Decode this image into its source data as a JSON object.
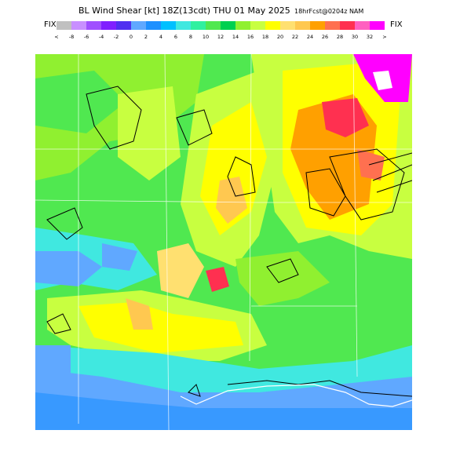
{
  "header": {
    "title": "BL Wind Shear [kt] 18Z(13cdt) THU 01 May 2025",
    "subtitle": "18hrFcst@0204z NAM",
    "fix_left": "FIX",
    "fix_right": "FIX"
  },
  "colorbar": {
    "colors": [
      "#c0c0c0",
      "#c890ff",
      "#a050ff",
      "#8020ff",
      "#5030f0",
      "#60a8ff",
      "#1e90ff",
      "#00c0ff",
      "#40e8e0",
      "#30f0a0",
      "#50e850",
      "#00d050",
      "#90f030",
      "#c8ff40",
      "#ffff00",
      "#ffe070",
      "#ffc850",
      "#ffa000",
      "#ff7050",
      "#ff3050",
      "#ff60c0",
      "#ff00ff"
    ],
    "labels": [
      "<",
      "-8",
      "-6",
      "-4",
      "-2",
      "0",
      "2",
      "4",
      "6",
      "8",
      "10",
      "12",
      "14",
      "16",
      "18",
      "20",
      "22",
      "24",
      "26",
      "28",
      "30",
      "32",
      ">"
    ]
  }
}
